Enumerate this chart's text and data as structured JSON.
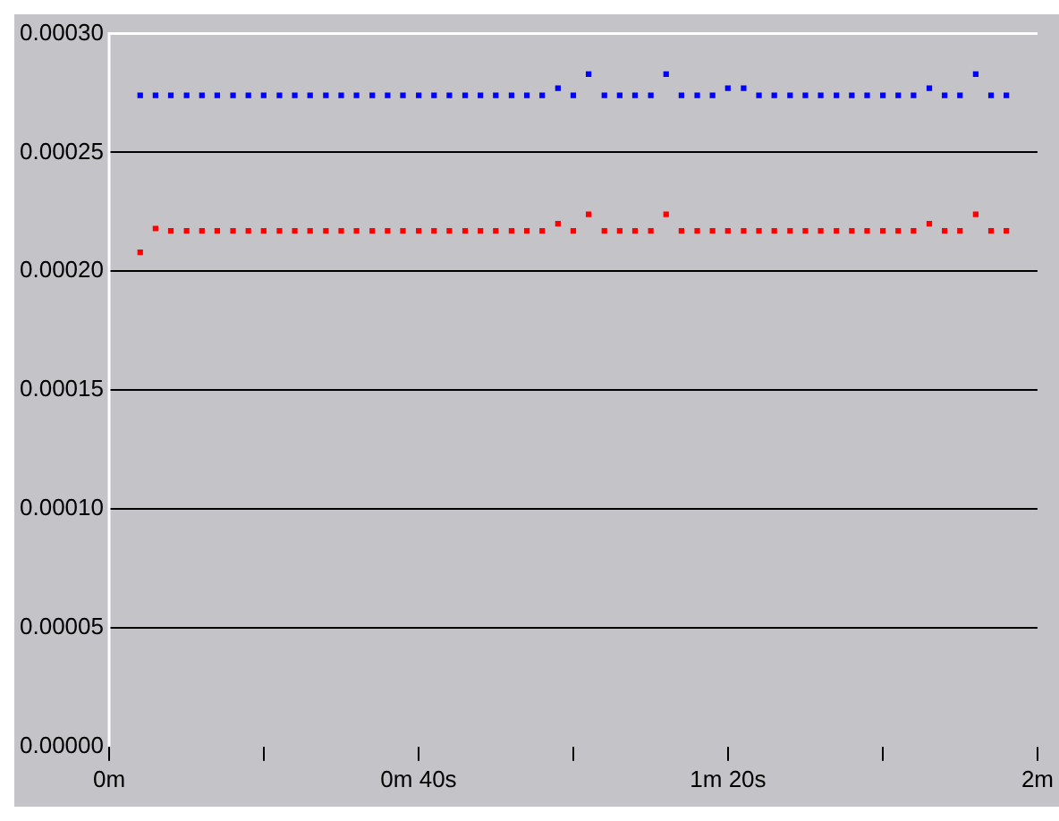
{
  "chart_data": {
    "type": "scatter",
    "marker": "square",
    "grid": "y",
    "x": [
      0.067,
      0.1,
      0.133,
      0.167,
      0.2,
      0.233,
      0.267,
      0.3,
      0.333,
      0.367,
      0.4,
      0.433,
      0.467,
      0.5,
      0.533,
      0.567,
      0.6,
      0.633,
      0.667,
      0.7,
      0.733,
      0.767,
      0.8,
      0.833,
      0.867,
      0.9,
      0.933,
      0.967,
      1,
      1.033,
      1.067,
      1.1,
      1.133,
      1.167,
      1.2,
      1.233,
      1.267,
      1.3,
      1.333,
      1.367,
      1.4,
      1.433,
      1.467,
      1.5,
      1.533,
      1.567,
      1.6,
      1.633,
      1.667,
      1.7,
      1.733,
      1.767,
      1.8,
      1.833,
      1.867,
      1.9,
      1.933
    ],
    "series": [
      {
        "color": "#0000ff",
        "values": [
          0.000274,
          0.000274,
          0.000274,
          0.000274,
          0.000274,
          0.000274,
          0.000274,
          0.000274,
          0.000274,
          0.000274,
          0.000274,
          0.000274,
          0.000274,
          0.000274,
          0.000274,
          0.000274,
          0.000274,
          0.000274,
          0.000274,
          0.000274,
          0.000274,
          0.000274,
          0.000274,
          0.000274,
          0.000274,
          0.000274,
          0.000274,
          0.000277,
          0.000274,
          0.000283,
          0.000274,
          0.000274,
          0.000274,
          0.000274,
          0.000283,
          0.000274,
          0.000274,
          0.000274,
          0.000277,
          0.000277,
          0.000274,
          0.000274,
          0.000274,
          0.000274,
          0.000274,
          0.000274,
          0.000274,
          0.000274,
          0.000274,
          0.000274,
          0.000274,
          0.000277,
          0.000274,
          0.000274,
          0.000283,
          0.000274,
          0.000274
        ]
      },
      {
        "color": "#ff0000",
        "values": [
          0.000208,
          0.000218,
          0.000217,
          0.000217,
          0.000217,
          0.000217,
          0.000217,
          0.000217,
          0.000217,
          0.000217,
          0.000217,
          0.000217,
          0.000217,
          0.000217,
          0.000217,
          0.000217,
          0.000217,
          0.000217,
          0.000217,
          0.000217,
          0.000217,
          0.000217,
          0.000217,
          0.000217,
          0.000217,
          0.000217,
          0.000217,
          0.00022,
          0.000217,
          0.000224,
          0.000217,
          0.000217,
          0.000217,
          0.000217,
          0.000224,
          0.000217,
          0.000217,
          0.000217,
          0.000217,
          0.000217,
          0.000217,
          0.000217,
          0.000217,
          0.000217,
          0.000217,
          0.000217,
          0.000217,
          0.000217,
          0.000217,
          0.000217,
          0.000217,
          0.00022,
          0.000217,
          0.000217,
          0.000224,
          0.000217,
          0.000217
        ]
      }
    ],
    "xlim": [
      0,
      2
    ],
    "xticks": [
      {
        "value": 0,
        "label": "0m"
      },
      {
        "value": 0.3333,
        "label": null
      },
      {
        "value": 0.6667,
        "label": "0m 40s"
      },
      {
        "value": 1,
        "label": null
      },
      {
        "value": 1.3333,
        "label": "1m 20s"
      },
      {
        "value": 1.6667,
        "label": null
      },
      {
        "value": 2,
        "label": "2m"
      }
    ],
    "ylim": [
      0,
      0.0003
    ],
    "yticks": [
      {
        "value": 0,
        "label": "0.00000"
      },
      {
        "value": 5e-05,
        "label": "0.00005"
      },
      {
        "value": 0.0001,
        "label": "0.00010"
      },
      {
        "value": 0.00015,
        "label": "0.00015"
      },
      {
        "value": 0.0002,
        "label": "0.00020"
      },
      {
        "value": 0.00025,
        "label": "0.00025"
      },
      {
        "value": 0.0003,
        "label": "0.00030"
      }
    ]
  }
}
